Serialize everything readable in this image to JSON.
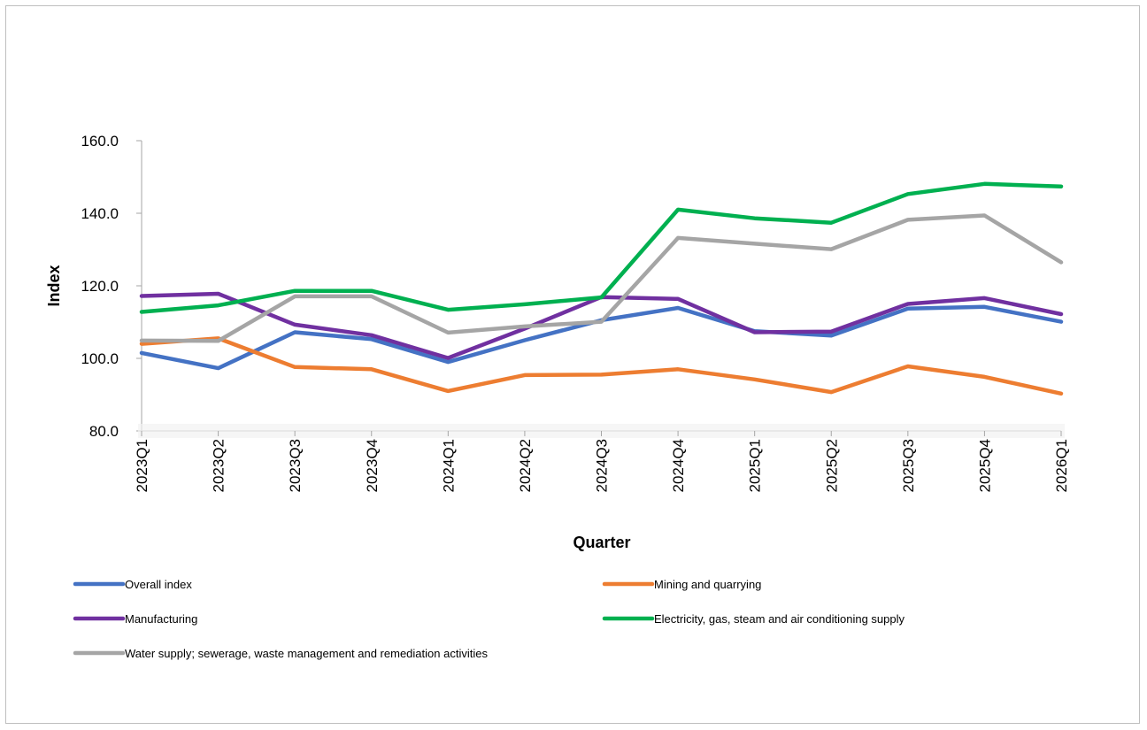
{
  "chart_data": {
    "type": "line",
    "title": "",
    "xlabel": "Quarter",
    "ylabel": "Index",
    "ylim": [
      80,
      160
    ],
    "yticks": [
      "80.0",
      "100.0",
      "120.0",
      "140.0",
      "160.0"
    ],
    "ytick_values": [
      80,
      100,
      120,
      140,
      160
    ],
    "categories": [
      "2023Q1",
      "2023Q2",
      "2023Q3",
      "2023Q4",
      "2024Q1",
      "2024Q2",
      "2024Q3",
      "2024Q4",
      "2025Q1",
      "2025Q2",
      "2025Q3",
      "2025Q4",
      "2026Q1"
    ],
    "grid": false,
    "legend_position": "bottom",
    "series": [
      {
        "name": "Overall index",
        "color": "#4472c4",
        "values": [
          101.5,
          97.3,
          107.2,
          105.3,
          99.0,
          105.0,
          110.5,
          113.9,
          107.5,
          106.3,
          113.7,
          114.2,
          110.1
        ]
      },
      {
        "name": "Mining and quarrying",
        "color": "#ed7d31",
        "values": [
          104.0,
          105.5,
          97.6,
          97.0,
          91.0,
          95.4,
          95.5,
          97.0,
          94.2,
          90.7,
          97.8,
          94.9,
          90.3
        ]
      },
      {
        "name": "Manufacturing",
        "color": "#7030a0",
        "values": [
          117.2,
          117.8,
          109.3,
          106.4,
          100.1,
          108.2,
          116.9,
          116.4,
          107.2,
          107.4,
          115.0,
          116.6,
          112.2
        ]
      },
      {
        "name": "Electricity, gas, steam and air conditioning supply",
        "color": "#00b050",
        "values": [
          112.8,
          114.6,
          118.6,
          118.6,
          113.4,
          114.9,
          116.8,
          141.0,
          138.6,
          137.4,
          145.3,
          148.1,
          147.4
        ]
      },
      {
        "name": "Water supply; sewerage, waste management and remediation activities",
        "color": "#a5a5a5",
        "values": [
          104.9,
          104.8,
          117.1,
          117.1,
          107.1,
          108.8,
          110.1,
          133.2,
          131.6,
          130.1,
          138.2,
          139.4,
          126.5
        ]
      }
    ]
  }
}
